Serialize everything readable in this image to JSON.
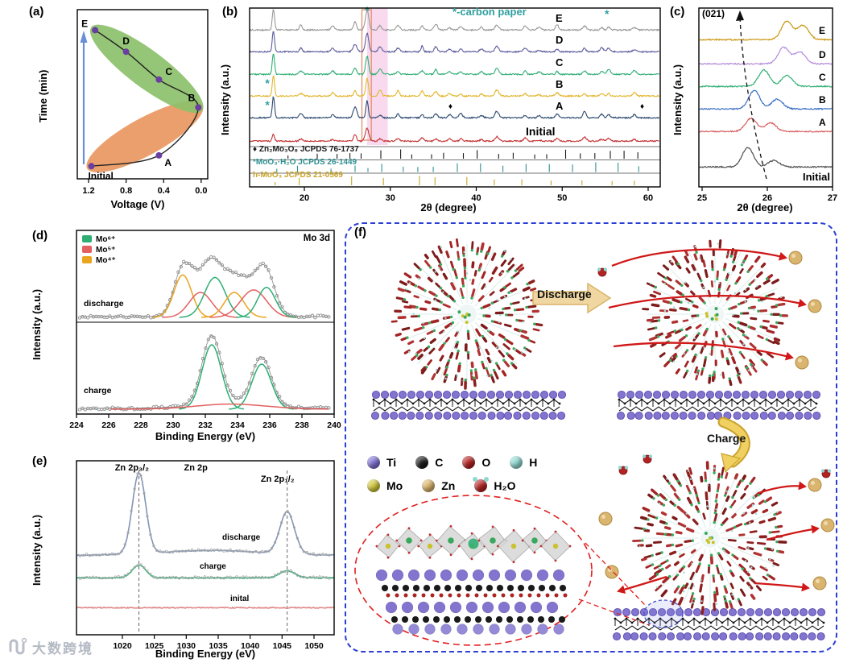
{
  "watermark": {
    "text": "大数跨境"
  },
  "panels": {
    "a": {
      "label": "(a)"
    },
    "b": {
      "label": "(b)",
      "carbon_note": "*-carbon paper"
    },
    "c": {
      "label": "(c)"
    },
    "d": {
      "label": "(d)"
    },
    "e": {
      "label": "(e)"
    },
    "f": {
      "label": "(f)",
      "discharge_label": "Discharge",
      "charge_label": "Charge",
      "legend_row1": [
        {
          "symbol": "Ti",
          "color": "#7d6fd0"
        },
        {
          "symbol": "C",
          "color": "#1c1c1c"
        },
        {
          "symbol": "O",
          "color": "#b22222"
        },
        {
          "symbol": "H",
          "color": "#8fd8d2"
        }
      ],
      "legend_row2": [
        {
          "symbol": "Mo",
          "color": "#cfc53a"
        },
        {
          "symbol": "Zn",
          "color": "#d9b36c"
        },
        {
          "symbol": "H₂O",
          "color": "#b22222"
        }
      ]
    }
  },
  "chart_data": [
    {
      "panel": "a",
      "type": "line",
      "xlabel": "Voltage (V)",
      "ylabel": "Time (min)",
      "x_ticks": [
        "1.2",
        "0.8",
        "0.4",
        "0.0"
      ],
      "x_tick_values": [
        1.2,
        0.8,
        0.4,
        0.0
      ],
      "x_reversed": true,
      "points": [
        {
          "label": "Initial",
          "voltage": 1.17,
          "time": 4
        },
        {
          "label": "A",
          "voltage": 0.45,
          "time": 11
        },
        {
          "label": "B",
          "voltage": 0.03,
          "time": 42
        },
        {
          "label": "C",
          "voltage": 0.45,
          "time": 60
        },
        {
          "label": "D",
          "voltage": 0.8,
          "time": 78
        },
        {
          "label": "E",
          "voltage": 1.13,
          "time": 92
        }
      ],
      "regions": [
        {
          "name": "discharge",
          "color": "#e9975f"
        },
        {
          "name": "charge",
          "color": "#8cc06a"
        }
      ],
      "marker_color": "#6a3fa0",
      "arrow_color": "#6b8fd6"
    },
    {
      "panel": "b",
      "type": "line",
      "xlabel": "2θ (degree)",
      "ylabel": "Intensity (a.u.)",
      "xlim": [
        14,
        61
      ],
      "x_ticks": [
        20,
        30,
        40,
        50,
        60
      ],
      "carbon_marker_color": "#2f9f9f",
      "diamond_marker": "♦",
      "asterisk_marks": [
        {
          "two_theta": 15.7,
          "at": "B"
        },
        {
          "two_theta": 15.7,
          "at": "A"
        },
        {
          "two_theta": 27.3,
          "at": "top"
        },
        {
          "two_theta": 55.2,
          "at": "E"
        }
      ],
      "diamond_marks_2theta": [
        37.0,
        59.3
      ],
      "highlight_band_2theta": [
        27.3,
        29.7
      ],
      "boxed_peak_2theta": [
        26.7,
        27.8
      ],
      "series": [
        {
          "label": "E",
          "color": "#999999"
        },
        {
          "label": "D",
          "color": "#5d5d9e"
        },
        {
          "label": "C",
          "color": "#2fae74"
        },
        {
          "label": "B",
          "color": "#e2b62e"
        },
        {
          "label": "A",
          "color": "#2c4a70"
        },
        {
          "label": "Initial",
          "color": "#c23232"
        }
      ],
      "common_peaks": [
        [
          16.4,
          1.0
        ],
        [
          19.6,
          0.22
        ],
        [
          23.3,
          0.3
        ],
        [
          25.9,
          0.5
        ],
        [
          27.3,
          0.9
        ],
        [
          28.8,
          0.25
        ],
        [
          30.9,
          0.25
        ],
        [
          33.7,
          0.3
        ],
        [
          35.3,
          0.3
        ],
        [
          36.9,
          0.2
        ],
        [
          38.2,
          0.2
        ],
        [
          40.6,
          0.14
        ],
        [
          42.4,
          0.3
        ],
        [
          45.7,
          0.22
        ],
        [
          47.3,
          0.14
        ],
        [
          49.4,
          0.25
        ],
        [
          52.6,
          0.28
        ],
        [
          54.6,
          0.18
        ],
        [
          55.4,
          0.22
        ],
        [
          58.4,
          0.18
        ]
      ],
      "references": [
        {
          "label": "♦ Zn₂Mo₃O₈ JCPDS 76-1737",
          "color": "#1a1a1a",
          "sticks": [
            18.1,
            21.5,
            23.8,
            25.3,
            26.6,
            28.9,
            31.2,
            32.5,
            34.8,
            36.2,
            38.5,
            40.1,
            42.6,
            44.3,
            46.8,
            48.2,
            50.4,
            52.1,
            53.8,
            55.6,
            57.2,
            58.8
          ]
        },
        {
          "label": "*MoO₃·H₂O JCPDS 26-1449",
          "color": "#2f9090",
          "sticks": [
            16.8,
            19.2,
            23.1,
            25.9,
            27.4,
            29.0,
            31.5,
            33.2,
            35.0,
            37.8,
            40.5,
            43.1,
            45.8,
            48.5,
            51.2,
            53.9,
            56.5,
            58.9
          ]
        },
        {
          "label": "h-MoO₃ JCPDS 21-0569",
          "color": "#c9a227",
          "sticks": [
            16.6,
            19.4,
            25.5,
            29.2,
            33.4,
            35.2,
            38.9,
            42.1,
            45.3,
            48.7,
            52.3,
            55.8,
            58.4
          ]
        }
      ]
    },
    {
      "panel": "c",
      "type": "line",
      "xlabel": "2θ (degree)",
      "ylabel": "Intensity (a.u.)",
      "xlim": [
        25,
        27
      ],
      "x_ticks": [
        25,
        26,
        27
      ],
      "plane_label": "(021)",
      "series": [
        {
          "label": "E",
          "color": "#c9960f",
          "peaks": [
            [
              26.3,
              0.85
            ],
            [
              26.55,
              0.65
            ]
          ]
        },
        {
          "label": "D",
          "color": "#b58cd9",
          "peaks": [
            [
              26.25,
              0.75
            ],
            [
              26.5,
              0.55
            ]
          ]
        },
        {
          "label": "C",
          "color": "#2fae74",
          "peaks": [
            [
              25.95,
              0.75
            ],
            [
              26.3,
              0.5
            ]
          ]
        },
        {
          "label": "B",
          "color": "#3a6fc4",
          "peaks": [
            [
              25.8,
              0.85
            ],
            [
              26.15,
              0.45
            ]
          ]
        },
        {
          "label": "A",
          "color": "#d96060",
          "peaks": [
            [
              25.75,
              0.6
            ],
            [
              26.05,
              0.4
            ]
          ]
        },
        {
          "label": "Initial",
          "color": "#4d4d4d",
          "peaks": [
            [
              25.7,
              0.9
            ],
            [
              26.1,
              0.3
            ]
          ]
        }
      ]
    },
    {
      "panel": "d",
      "type": "line",
      "xlabel": "Binding Energy (eV)",
      "ylabel": "Intensity (a.u.)",
      "xlim": [
        224,
        240
      ],
      "x_ticks": [
        224,
        226,
        228,
        230,
        232,
        234,
        236,
        238,
        240
      ],
      "annotation": "Mo 3d",
      "legend": [
        {
          "label": "Mo⁶⁺",
          "color": "#2fae74"
        },
        {
          "label": "Mo⁵⁺",
          "color": "#e36060"
        },
        {
          "label": "Mo⁴⁺",
          "color": "#eaa41f"
        }
      ],
      "sub_panels": [
        {
          "label": "discharge",
          "fit_peaks": [
            {
              "center": 230.6,
              "height": 0.85,
              "width": 0.55,
              "species": "Mo⁴⁺",
              "color": "#eaa41f"
            },
            {
              "center": 231.7,
              "height": 0.5,
              "width": 0.7,
              "species": "Mo⁵⁺",
              "color": "#e36060"
            },
            {
              "center": 232.6,
              "height": 0.8,
              "width": 0.65,
              "species": "Mo⁶⁺",
              "color": "#2fae74"
            },
            {
              "center": 233.8,
              "height": 0.5,
              "width": 0.6,
              "species": "Mo⁴⁺",
              "color": "#eaa41f"
            },
            {
              "center": 235.0,
              "height": 0.55,
              "width": 0.8,
              "species": "Mo⁵⁺",
              "color": "#e36060"
            },
            {
              "center": 235.8,
              "height": 0.6,
              "width": 0.55,
              "species": "Mo⁶⁺",
              "color": "#2fae74"
            }
          ]
        },
        {
          "label": "charge",
          "fit_peaks": [
            {
              "center": 232.4,
              "height": 1.0,
              "width": 0.6,
              "species": "Mo⁶⁺",
              "color": "#2fae74"
            },
            {
              "center": 235.5,
              "height": 0.7,
              "width": 0.6,
              "species": "Mo⁶⁺",
              "color": "#2fae74"
            },
            {
              "center": 233.6,
              "height": 0.08,
              "width": 2.2,
              "species": "Mo⁵⁺",
              "color": "#e36060"
            }
          ]
        }
      ]
    },
    {
      "panel": "e",
      "type": "line",
      "xlabel": "Binding Energy (eV)",
      "ylabel": "Intensity (a.u.)",
      "xlim": [
        1016,
        1052
      ],
      "x_ticks": [
        1020,
        1025,
        1030,
        1035,
        1040,
        1045,
        1050
      ],
      "peak_labels": [
        {
          "text": "Zn 2p₃/₂",
          "x": 1021.5
        },
        {
          "text": "Zn 2p",
          "x": 1031.5
        },
        {
          "text": "Zn 2p₁/₂",
          "x": 1044.3
        }
      ],
      "dashed_lines_ev": [
        1022.6,
        1045.8
      ],
      "series": [
        {
          "label": "discharge",
          "color": "#8494b4",
          "peaks": [
            [
              1022.6,
              1.0
            ],
            [
              1045.8,
              0.52
            ]
          ]
        },
        {
          "label": "charge",
          "color": "#2fae74",
          "peaks": [
            [
              1022.6,
              0.16
            ],
            [
              1045.8,
              0.09
            ]
          ]
        },
        {
          "label": "inital",
          "color": "#e08a8a",
          "peaks": []
        }
      ]
    },
    {
      "panel": "f",
      "type": "schematic",
      "process_labels": [
        "Discharge",
        "Charge"
      ],
      "legend_symbols": [
        [
          "Ti",
          "C",
          "O",
          "H"
        ],
        [
          "Mo",
          "Zn",
          "H₂O"
        ]
      ]
    }
  ]
}
